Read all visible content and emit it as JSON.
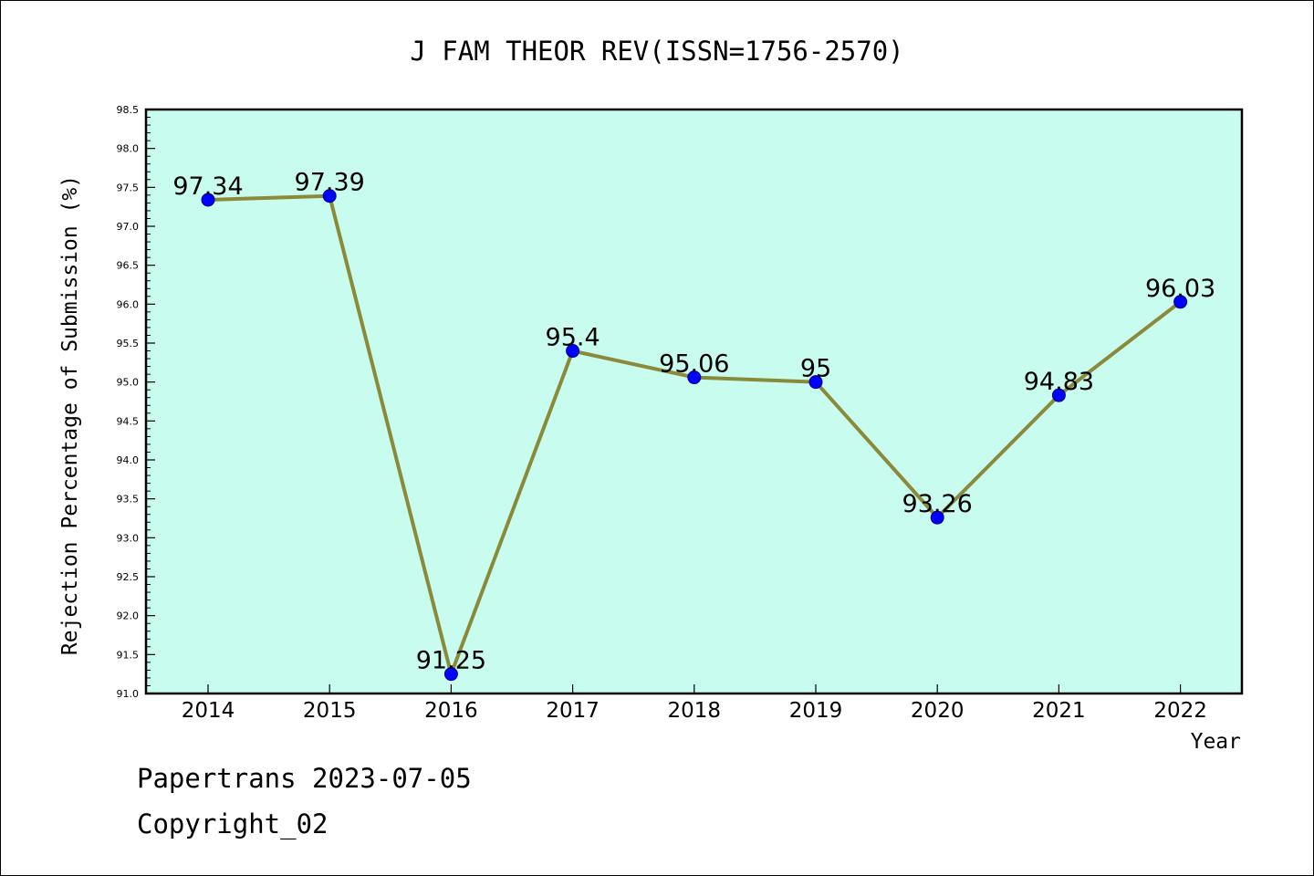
{
  "chart_data": {
    "type": "line",
    "title": "J FAM THEOR REV(ISSN=1756-2570)",
    "xlabel": "Year",
    "ylabel": "Rejection Percentage of Submission (%)",
    "categories": [
      "2014",
      "2015",
      "2016",
      "2017",
      "2018",
      "2019",
      "2020",
      "2021",
      "2022"
    ],
    "series": [
      {
        "values": [
          97.34,
          97.39,
          91.25,
          95.4,
          95.06,
          95,
          93.26,
          94.83,
          96.03
        ],
        "labels": [
          "97.34",
          "97.39",
          "91.25",
          "95.4",
          "95.06",
          "95",
          "93.26",
          "94.83",
          "96.03"
        ]
      }
    ],
    "ylim": [
      91.0,
      98.5
    ],
    "yticks": [
      "91.0",
      "91.5",
      "92.0",
      "92.5",
      "93.0",
      "93.5",
      "94.0",
      "94.5",
      "95.0",
      "95.5",
      "96.0",
      "96.5",
      "97.0",
      "97.5",
      "98.0",
      "98.5"
    ],
    "grid": false,
    "colors": {
      "plot_background": "#c8fcee",
      "line": "#8b8a3a",
      "marker": "#0000ff"
    }
  },
  "footer": {
    "line1": "Papertrans 2023-07-05",
    "line2": "Copyright_02"
  }
}
